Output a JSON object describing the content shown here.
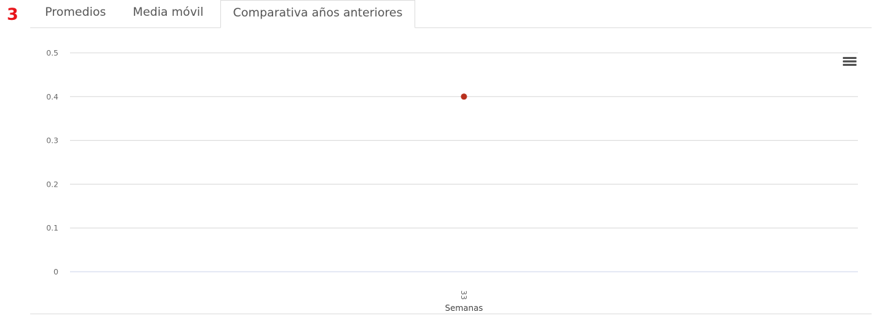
{
  "step_badge": "3",
  "tabs": [
    {
      "label": "Promedios",
      "active": false
    },
    {
      "label": "Media móvil",
      "active": false
    },
    {
      "label": "Comparativa años anteriores",
      "active": true
    }
  ],
  "chart_data": {
    "type": "scatter",
    "title": "",
    "xlabel": "Semanas",
    "ylabel": "",
    "categories": [
      "33"
    ],
    "series": [
      {
        "values": [
          0.4
        ],
        "color": "#b8311f"
      }
    ],
    "ylim": [
      0,
      0.5
    ],
    "y_ticks": [
      "0",
      "0.1",
      "0.2",
      "0.3",
      "0.4",
      "0.5"
    ],
    "grid": true,
    "legend": "none"
  },
  "icons": {
    "export_menu": "hamburger-menu-icon"
  }
}
